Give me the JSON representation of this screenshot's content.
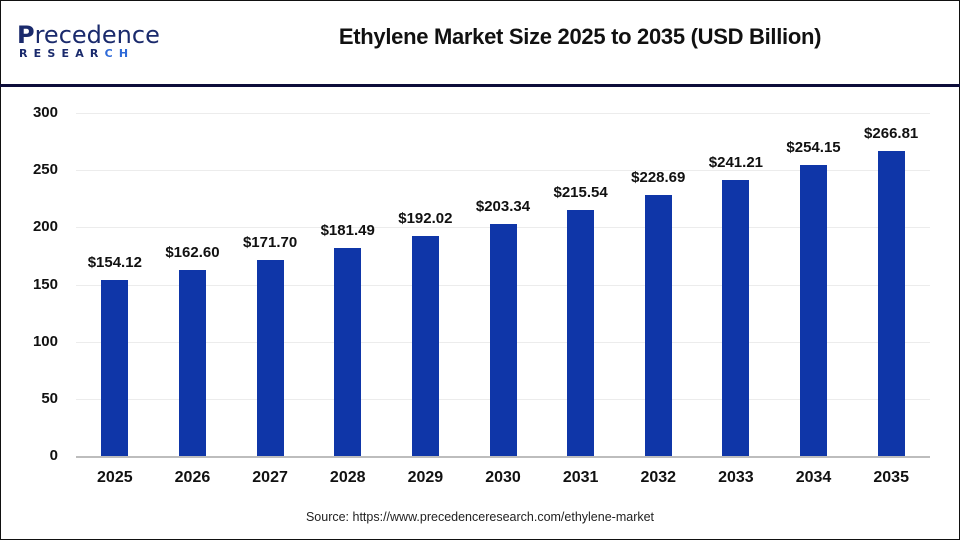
{
  "header": {
    "logo": {
      "line1_initial": "P",
      "line1_rest": "recedence",
      "line2_main": "RESEAR",
      "line2_accent": "CH"
    },
    "title": "Ethylene Market Size 2025 to 2035 (USD Billion)"
  },
  "footer": {
    "source": "Source: https://www.precedenceresearch.com/ethylene-market"
  },
  "colors": {
    "bar": "#0f36a8",
    "divider": "#0d0d3a",
    "logo_primary": "#1a2a6c",
    "logo_accent": "#2e6ad8"
  },
  "chart_data": {
    "type": "bar",
    "title": "Ethylene Market Size 2025 to 2035 (USD Billion)",
    "xlabel": "",
    "ylabel": "",
    "categories": [
      "2025",
      "2026",
      "2027",
      "2028",
      "2029",
      "2030",
      "2031",
      "2032",
      "2033",
      "2034",
      "2035"
    ],
    "values": [
      154.12,
      162.6,
      171.7,
      181.49,
      192.02,
      203.34,
      215.54,
      228.69,
      241.21,
      254.15,
      266.81
    ],
    "value_labels": [
      "$154.12",
      "$162.60",
      "$171.70",
      "$181.49",
      "$192.02",
      "$203.34",
      "$215.54",
      "$228.69",
      "$241.21",
      "$254.15",
      "$266.81"
    ],
    "yticks": [
      "0",
      "50",
      "100",
      "150",
      "200",
      "250",
      "300"
    ],
    "ylim": [
      0,
      300
    ],
    "grid": true,
    "legend": null
  }
}
